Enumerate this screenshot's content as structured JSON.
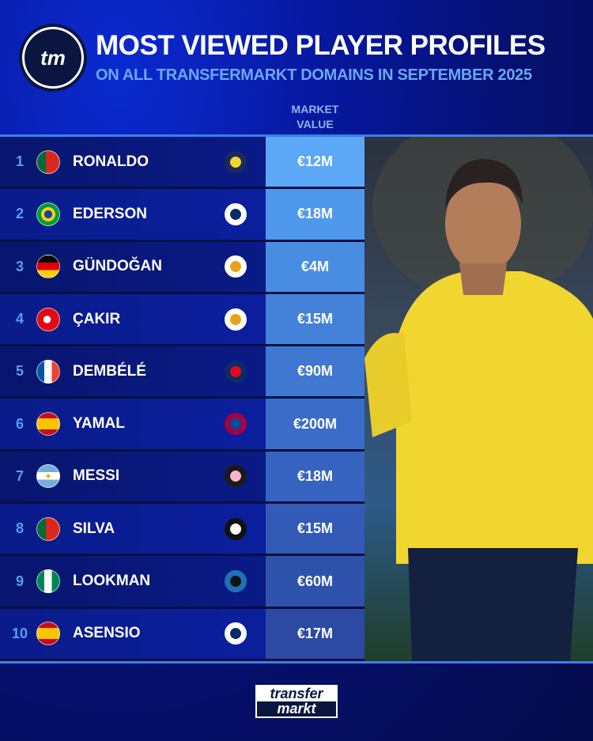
{
  "header": {
    "logo_text": "tm",
    "title": "MOST VIEWED PLAYER PROFILES",
    "subtitle": "ON ALL TRANSFERMARKT DOMAINS IN SEPTEMBER 2025",
    "column_header": "MARKET\nVALUE",
    "column_header_lines": [
      "MARKET",
      "VALUE"
    ]
  },
  "players": [
    {
      "rank": "1",
      "name": "RONALDO",
      "country": "Portugal",
      "club": "Al-Nassr",
      "value": "€12M",
      "value_color": "#5aa8f6"
    },
    {
      "rank": "2",
      "name": "EDERSON",
      "country": "Brazil",
      "club": "Fenerbahçe",
      "value": "€18M",
      "value_color": "#4f99ec"
    },
    {
      "rank": "3",
      "name": "GÜNDOĞAN",
      "country": "Germany",
      "club": "Galatasaray",
      "value": "€4M",
      "value_color": "#498de3"
    },
    {
      "rank": "4",
      "name": "ÇAKIR",
      "country": "Turkey",
      "club": "Galatasaray",
      "value": "€15M",
      "value_color": "#4482da"
    },
    {
      "rank": "5",
      "name": "DEMBÉLÉ",
      "country": "France",
      "club": "Paris Saint-Germain",
      "value": "€90M",
      "value_color": "#3f77d1"
    },
    {
      "rank": "6",
      "name": "YAMAL",
      "country": "Spain",
      "club": "FC Barcelona",
      "value": "€200M",
      "value_color": "#3a6cc8"
    },
    {
      "rank": "7",
      "name": "MESSI",
      "country": "Argentina",
      "club": "Inter Miami",
      "value": "€18M",
      "value_color": "#3663bf"
    },
    {
      "rank": "8",
      "name": "SILVA",
      "country": "Portugal",
      "club": "Beşiktaş",
      "value": "€15M",
      "value_color": "#325ab6"
    },
    {
      "rank": "9",
      "name": "LOOKMAN",
      "country": "Nigeria",
      "club": "Atalanta",
      "value": "€60M",
      "value_color": "#2f52ad"
    },
    {
      "rank": "10",
      "name": "ASENSIO",
      "country": "Spain",
      "club": "Fenerbahçe",
      "value": "€17M",
      "value_color": "#2c4aa4"
    }
  ],
  "footer": {
    "logo_top": "transfer",
    "logo_bottom": "markt"
  }
}
